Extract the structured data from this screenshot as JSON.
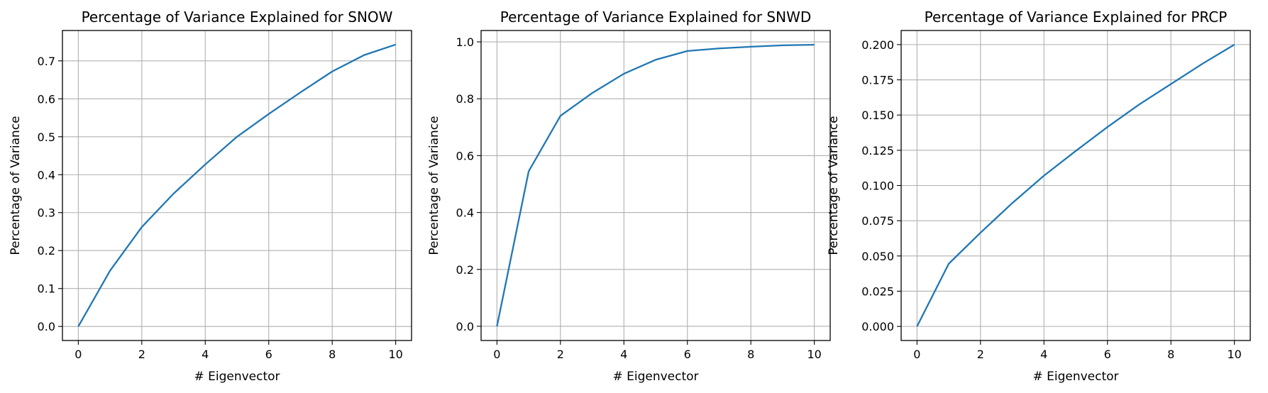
{
  "chart_data": [
    {
      "type": "line",
      "title": "Percentage of Variance Explained for SNOW",
      "xlabel": "# Eigenvector",
      "ylabel": "Percentage of Variance",
      "xlim": [
        -0.5,
        10.5
      ],
      "ylim": [
        -0.037,
        0.78
      ],
      "xticks": [
        0,
        2,
        4,
        6,
        8,
        10
      ],
      "xtick_labels": [
        "0",
        "2",
        "4",
        "6",
        "8",
        "10"
      ],
      "yticks": [
        0.0,
        0.1,
        0.2,
        0.3,
        0.4,
        0.5,
        0.6,
        0.7
      ],
      "ytick_labels": [
        "0.0",
        "0.1",
        "0.2",
        "0.3",
        "0.4",
        "0.5",
        "0.6",
        "0.7"
      ],
      "grid": true,
      "color": "#1f77b4",
      "x": [
        0,
        1,
        2,
        3,
        4,
        5,
        6,
        7,
        8,
        9,
        10
      ],
      "y": [
        0.0,
        0.147,
        0.262,
        0.35,
        0.427,
        0.5,
        0.56,
        0.617,
        0.672,
        0.715,
        0.743
      ]
    },
    {
      "type": "line",
      "title": "Percentage of Variance Explained for SNWD",
      "xlabel": "# Eigenvector",
      "ylabel": "Percentage of Variance",
      "xlim": [
        -0.5,
        10.5
      ],
      "ylim": [
        -0.05,
        1.04
      ],
      "xticks": [
        0,
        2,
        4,
        6,
        8,
        10
      ],
      "xtick_labels": [
        "0",
        "2",
        "4",
        "6",
        "8",
        "10"
      ],
      "yticks": [
        0.0,
        0.2,
        0.4,
        0.6,
        0.8,
        1.0
      ],
      "ytick_labels": [
        "0.0",
        "0.2",
        "0.4",
        "0.6",
        "0.8",
        "1.0"
      ],
      "grid": true,
      "color": "#1f77b4",
      "x": [
        0,
        1,
        2,
        3,
        4,
        5,
        6,
        7,
        8,
        9,
        10
      ],
      "y": [
        0.0,
        0.545,
        0.74,
        0.82,
        0.888,
        0.937,
        0.968,
        0.977,
        0.983,
        0.988,
        0.99
      ]
    },
    {
      "type": "line",
      "title": "Percentage of Variance Explained for PRCP",
      "xlabel": "# Eigenvector",
      "ylabel": "Percentage of Variance",
      "xlim": [
        -0.5,
        10.5
      ],
      "ylim": [
        -0.01,
        0.21
      ],
      "xticks": [
        0,
        2,
        4,
        6,
        8,
        10
      ],
      "xtick_labels": [
        "0",
        "2",
        "4",
        "6",
        "8",
        "10"
      ],
      "yticks": [
        0.0,
        0.025,
        0.05,
        0.075,
        0.1,
        0.125,
        0.15,
        0.175,
        0.2
      ],
      "ytick_labels": [
        "0.000",
        "0.025",
        "0.050",
        "0.075",
        "0.100",
        "0.125",
        "0.150",
        "0.175",
        "0.200"
      ],
      "grid": true,
      "color": "#1f77b4",
      "x": [
        0,
        1,
        2,
        3,
        4,
        5,
        6,
        7,
        8,
        9,
        10
      ],
      "y": [
        0.0,
        0.0445,
        0.0665,
        0.0875,
        0.107,
        0.1245,
        0.1415,
        0.1575,
        0.172,
        0.1865,
        0.2
      ]
    }
  ]
}
